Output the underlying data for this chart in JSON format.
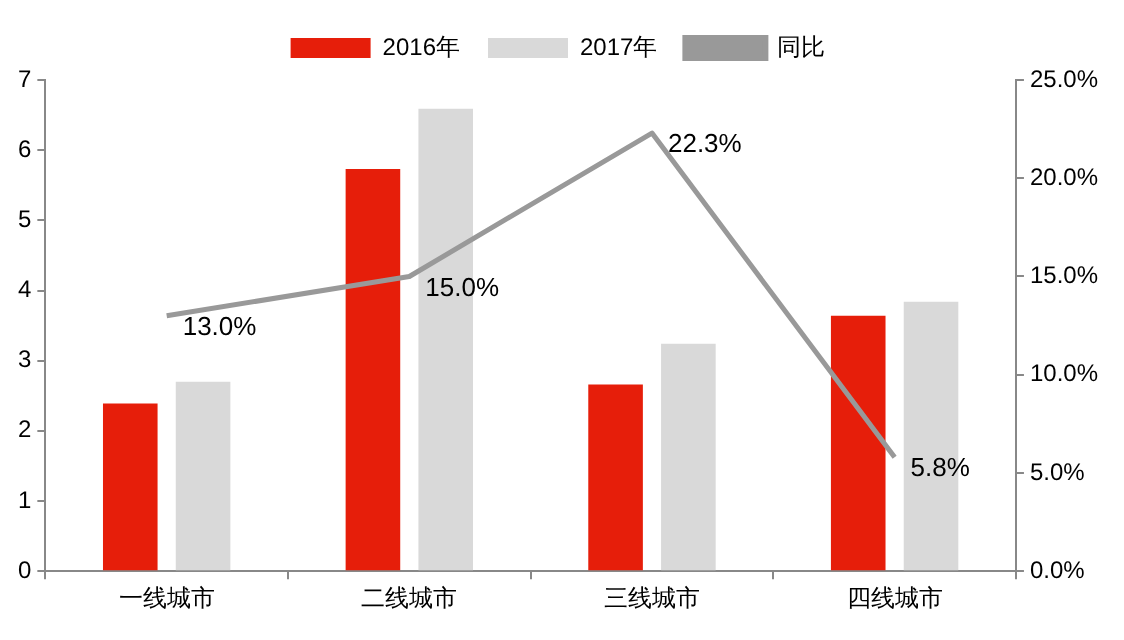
{
  "chart_data": {
    "type": "bar",
    "categories": [
      "一线城市",
      "二线城市",
      "三线城市",
      "四线城市"
    ],
    "series": [
      {
        "name": "2016年",
        "color": "#e61e0a",
        "values": [
          2.39,
          5.73,
          2.66,
          3.64
        ]
      },
      {
        "name": "2017年",
        "color": "#d9d9d9",
        "values": [
          2.7,
          6.59,
          3.24,
          3.84
        ]
      },
      {
        "name": "同比",
        "type": "line",
        "axis": "y2",
        "color": "#999999",
        "marker": "none",
        "values": [
          13.0,
          15.0,
          22.3,
          5.8
        ],
        "value_labels": [
          "13.0%",
          "15.0%",
          "22.3%",
          "5.8%"
        ]
      }
    ],
    "ylim": [
      0,
      7
    ],
    "yticks": [
      0,
      1,
      2,
      3,
      4,
      5,
      6,
      7
    ],
    "y2lim": [
      0,
      25
    ],
    "y2ticks": [
      {
        "value": 0,
        "label": "0.0%"
      },
      {
        "value": 5,
        "label": "5.0%"
      },
      {
        "value": 10,
        "label": "10.0%"
      },
      {
        "value": 15,
        "label": "15.0%"
      },
      {
        "value": 20,
        "label": "20.0%"
      },
      {
        "value": 25,
        "label": "25.0%"
      }
    ],
    "grid": false,
    "legend": "top"
  }
}
